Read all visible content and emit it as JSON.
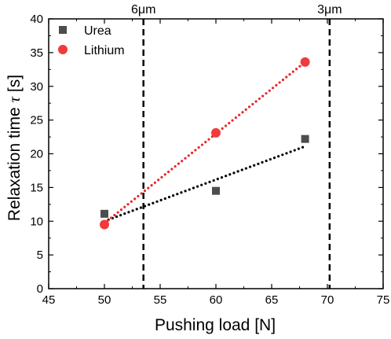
{
  "chart_data": {
    "type": "scatter",
    "xlabel": "Pushing load [N]",
    "ylabel_text": "Relaxation time",
    "ylabel_symbol": "τ",
    "ylabel_unit": "[s]",
    "xlim": [
      45,
      75
    ],
    "ylim": [
      0,
      40
    ],
    "xticks": [
      45,
      50,
      55,
      60,
      65,
      70,
      75
    ],
    "yticks": [
      0,
      5,
      10,
      15,
      20,
      25,
      30,
      35,
      40
    ],
    "grid": false,
    "legend_position": "top-left",
    "series": [
      {
        "name": "Urea",
        "marker": "square",
        "color": "#4d4d4d",
        "x": [
          50,
          60,
          68
        ],
        "y": [
          11.1,
          14.5,
          22.2
        ],
        "fit": {
          "x": [
            50,
            68
          ],
          "y": [
            10.0,
            21.1
          ],
          "color": "#000000",
          "style": "dotted"
        }
      },
      {
        "name": "Lithium",
        "marker": "circle",
        "color": "#ef3b3b",
        "x": [
          50,
          60,
          68
        ],
        "y": [
          9.5,
          23.1,
          33.6
        ],
        "fit": {
          "x": [
            50,
            68
          ],
          "y": [
            9.7,
            33.6
          ],
          "color": "#e8292b",
          "style": "dotted"
        }
      }
    ],
    "vertical_lines": [
      {
        "x": 53.5,
        "label": "6μm"
      },
      {
        "x": 70.2,
        "label": "3μm"
      }
    ]
  }
}
